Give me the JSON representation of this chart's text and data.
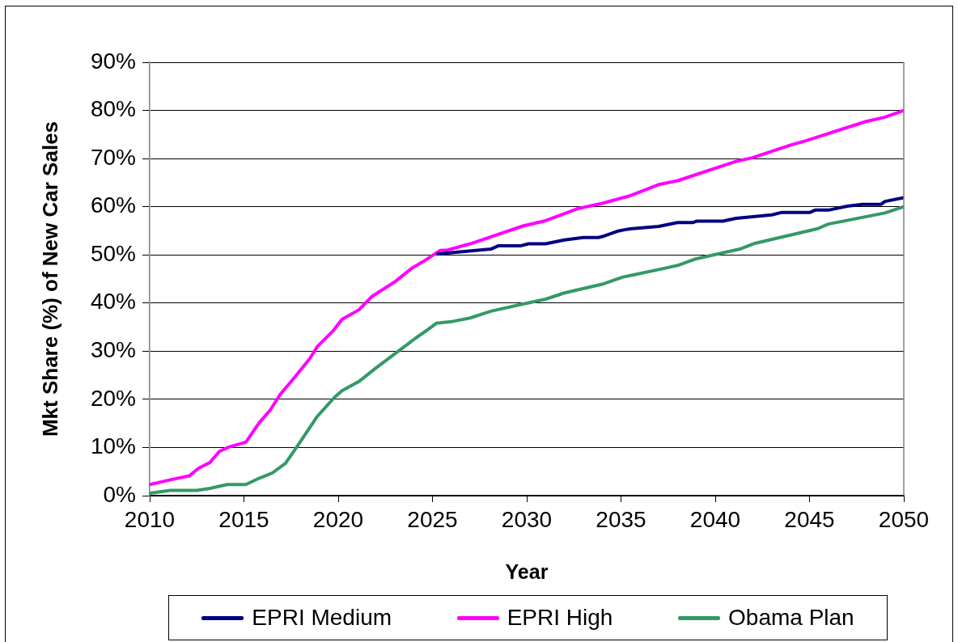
{
  "chart_data": {
    "type": "line",
    "xlabel": "Year",
    "ylabel": "Mkt Share (%) of New Car Sales",
    "xlim": [
      2010,
      2050
    ],
    "xticks": [
      2010,
      2015,
      2020,
      2025,
      2030,
      2035,
      2040,
      2045,
      2050
    ],
    "ylim": [
      0,
      90
    ],
    "yticks": [
      {
        "value": 0,
        "label": "0%"
      },
      {
        "value": 10,
        "label": "10%"
      },
      {
        "value": 20,
        "label": "20%"
      },
      {
        "value": 30,
        "label": "30%"
      },
      {
        "value": 40,
        "label": "40%"
      },
      {
        "value": 50,
        "label": "50%"
      },
      {
        "value": 60,
        "label": "60%"
      },
      {
        "value": 70,
        "label": "70%"
      },
      {
        "value": 80,
        "label": "80%"
      },
      {
        "value": 90,
        "label": "90%"
      }
    ],
    "grid": "y",
    "legend": "bottom",
    "line_style": "solid",
    "series": [
      {
        "name": "EPRI Medium",
        "color": "#000080",
        "x": [
          2025.3,
          2028.1,
          2028.5,
          2029.7,
          2030.1,
          2031,
          2032,
          2033,
          2033.8,
          2034.1,
          2034.8,
          2035.3,
          2035.5,
          2037,
          2038,
          2038.8,
          2039,
          2040.4,
          2041.1,
          2043,
          2043.5,
          2045,
          2045.3,
          2046,
          2047,
          2047.8,
          2048.8,
          2049,
          2050
        ],
        "values": [
          50.2,
          51.2,
          51.9,
          51.9,
          52.3,
          52.3,
          53.1,
          53.6,
          53.6,
          53.9,
          54.9,
          55.3,
          55.4,
          55.9,
          56.7,
          56.7,
          57,
          57,
          57.6,
          58.3,
          58.8,
          58.8,
          59.3,
          59.3,
          60.1,
          60.5,
          60.5,
          61.1,
          61.9
        ]
      },
      {
        "name": "EPRI High",
        "color": "#ff00ff",
        "x": [
          2010,
          2011.1,
          2012.1,
          2012.6,
          2013.2,
          2013.7,
          2014.2,
          2015.1,
          2015.8,
          2016.4,
          2016.9,
          2017.8,
          2018.5,
          2018.9,
          2019.7,
          2020.2,
          2021.1,
          2021.8,
          2023,
          2023.9,
          2024.5,
          2025.4,
          2025.8,
          2027,
          2029.8,
          2031,
          2032.7,
          2034,
          2035.5,
          2037,
          2038,
          2041,
          2042,
          2044,
          2044.8,
          2048,
          2049,
          2050
        ],
        "values": [
          2.3,
          3.3,
          4.1,
          5.7,
          6.9,
          9.2,
          10.1,
          11.1,
          15.1,
          17.8,
          20.9,
          25.1,
          28.5,
          31,
          34.1,
          36.6,
          38.6,
          41.4,
          44.4,
          47.2,
          48.6,
          50.9,
          51,
          52.3,
          56,
          57.1,
          59.6,
          60.7,
          62.3,
          64.6,
          65.4,
          69.3,
          70.2,
          72.8,
          73.7,
          77.7,
          78.6,
          80
        ]
      },
      {
        "name": "Obama Plan",
        "color": "#339966",
        "x": [
          2010,
          2011.1,
          2012.5,
          2013.2,
          2014.1,
          2015.1,
          2015.8,
          2016.5,
          2017.2,
          2017.8,
          2018.9,
          2019.8,
          2020.2,
          2021.1,
          2022,
          2024.1,
          2024.8,
          2025.2,
          2026.1,
          2027,
          2028.1,
          2029.8,
          2031,
          2032,
          2034,
          2035.1,
          2035.5,
          2037.3,
          2038,
          2039,
          2041.3,
          2042.1,
          2045.4,
          2046,
          2049,
          2050
        ],
        "values": [
          0.5,
          1.1,
          1.1,
          1.5,
          2.3,
          2.3,
          3.6,
          4.7,
          6.7,
          10.1,
          16.5,
          20.4,
          21.8,
          23.7,
          26.5,
          32.7,
          34.6,
          35.8,
          36.2,
          36.9,
          38.3,
          39.8,
          40.8,
          42.1,
          43.9,
          45.4,
          45.7,
          47.2,
          47.8,
          49.2,
          51.2,
          52.4,
          55.4,
          56.4,
          58.7,
          60
        ]
      }
    ]
  }
}
